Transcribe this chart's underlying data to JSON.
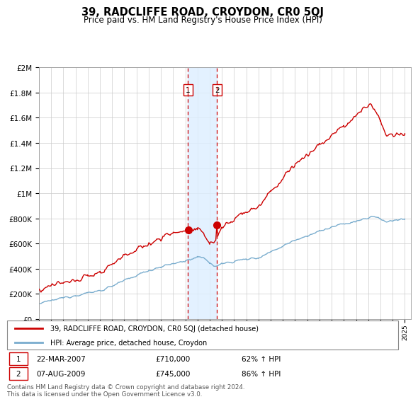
{
  "title": "39, RADCLIFFE ROAD, CROYDON, CR0 5QJ",
  "subtitle": "Price paid vs. HM Land Registry's House Price Index (HPI)",
  "transaction1_date": "22-MAR-2007",
  "transaction1_price": "£710,000",
  "transaction1_pct": "62% ↑ HPI",
  "transaction1_year": 2007.22,
  "transaction1_val": 710000,
  "transaction2_date": "07-AUG-2009",
  "transaction2_price": "£745,000",
  "transaction2_pct": "86% ↑ HPI",
  "transaction2_year": 2009.6,
  "transaction2_val": 745000,
  "legend_red": "39, RADCLIFFE ROAD, CROYDON, CR0 5QJ (detached house)",
  "legend_blue": "HPI: Average price, detached house, Croydon",
  "footer": "Contains HM Land Registry data © Crown copyright and database right 2024.\nThis data is licensed under the Open Government Licence v3.0.",
  "red_color": "#cc0000",
  "blue_color": "#7aadce",
  "grid_color": "#cccccc",
  "shade_color": "#ddeeff",
  "box_color": "#cc0000",
  "ylim_max": 2000000,
  "ytick_vals": [
    0,
    200000,
    400000,
    600000,
    800000,
    1000000,
    1200000,
    1400000,
    1600000,
    1800000,
    2000000
  ],
  "ytick_labels": [
    "£0",
    "£200K",
    "£400K",
    "£600K",
    "£800K",
    "£1M",
    "£1.2M",
    "£1.4M",
    "£1.6M",
    "£1.8M",
    "£2M"
  ],
  "xmin": 1995,
  "xmax": 2025.5
}
